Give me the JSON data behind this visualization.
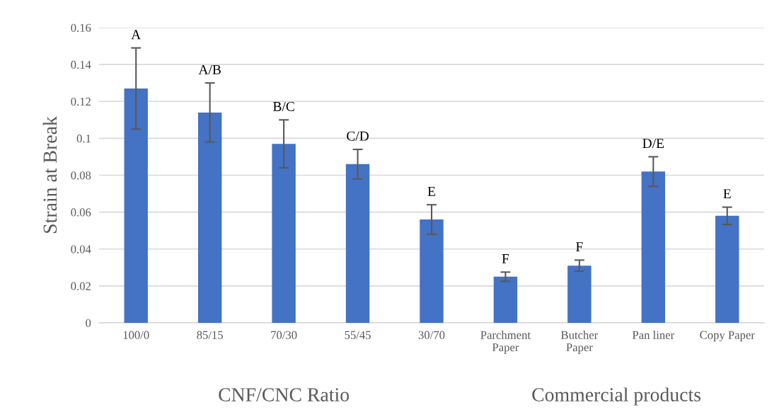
{
  "chart_data": {
    "type": "bar",
    "ylabel": "Strain at Break",
    "categories": [
      "100/0",
      "85/15",
      "70/30",
      "55/45",
      "30/70",
      "Parchment\nPaper",
      "Butcher\nPaper",
      "Pan liner",
      "Copy Paper"
    ],
    "values": [
      0.127,
      0.114,
      0.097,
      0.086,
      0.056,
      0.025,
      0.031,
      0.082,
      0.058
    ],
    "errors": [
      0.022,
      0.016,
      0.013,
      0.008,
      0.008,
      0.0025,
      0.003,
      0.008,
      0.0047
    ],
    "color": "#4472c4",
    "ylim": [
      0,
      0.16
    ],
    "yticks": [
      0,
      0.02,
      0.04,
      0.06,
      0.08,
      {
        "value": 0.1,
        "label": "0.1"
      },
      0.12,
      0.14,
      0.16
    ],
    "grid": "y",
    "annotations": [
      {
        "text": "A",
        "x": "100/0",
        "y": 0.149
      },
      {
        "text": "A/B",
        "x": "85/15",
        "y": 0.13
      },
      {
        "text": "B/C",
        "x": "70/30",
        "y": 0.11
      },
      {
        "text": "C/D",
        "x": "55/45",
        "y": 0.094
      },
      {
        "text": "E",
        "x": "30/70",
        "y": 0.064
      },
      {
        "text": "F",
        "x": "Parchment\nPaper",
        "y": 0.0275
      },
      {
        "text": "F",
        "x": "Butcher\nPaper",
        "y": 0.034
      },
      {
        "text": "D/E",
        "x": "Pan liner",
        "y": 0.09
      },
      {
        "text": "E",
        "x": "Copy Paper",
        "y": 0.0627
      },
      "CNF/CNC Ratio",
      "Commercial products"
    ]
  }
}
